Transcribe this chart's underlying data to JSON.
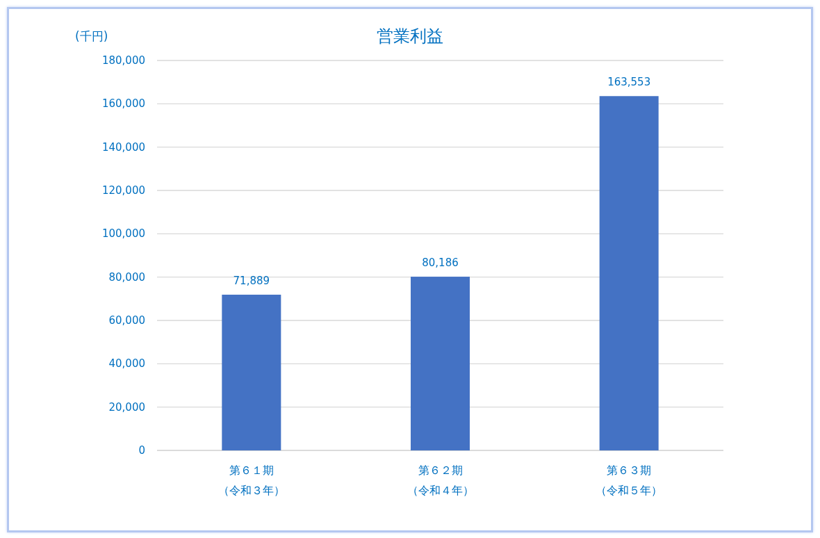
{
  "chart_data": {
    "type": "bar",
    "title": "営業利益",
    "ylabel": "(千円)",
    "categories": [
      "第６１期（令和３年）",
      "第６２期（令和４年）",
      "第６３期（令和５年）"
    ],
    "values": [
      71889,
      80186,
      163553
    ],
    "value_labels": [
      "71,889",
      "80,186",
      "163,553"
    ],
    "color": "#4472c4",
    "ylim": [
      0,
      180000
    ],
    "yticks": [
      0,
      {
        "value": 20000,
        "label": "20,000"
      },
      {
        "value": 40000,
        "label": "40,000"
      },
      {
        "value": 60000,
        "label": "60,000"
      },
      {
        "value": 80000,
        "label": "80,000"
      },
      {
        "value": 100000,
        "label": "100,000"
      },
      {
        "value": 120000,
        "label": "120,000"
      },
      {
        "value": 140000,
        "label": "140,000"
      },
      {
        "value": 160000,
        "label": "160,000"
      },
      {
        "value": 180000,
        "label": "180,000"
      }
    ],
    "grid": "y"
  }
}
